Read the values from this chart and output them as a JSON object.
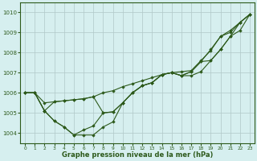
{
  "background_color": "#d6efef",
  "grid_color": "#b0c8c8",
  "line_color": "#2d5a1b",
  "marker_color": "#2d5a1b",
  "xlabel": "Graphe pression niveau de la mer (hPa)",
  "xlabel_color": "#2d5a1b",
  "ylim": [
    1003.5,
    1010.5
  ],
  "xlim": [
    -0.5,
    23.5
  ],
  "yticks": [
    1004,
    1005,
    1006,
    1007,
    1008,
    1009,
    1010
  ],
  "xticks": [
    0,
    1,
    2,
    3,
    4,
    5,
    6,
    7,
    8,
    9,
    10,
    11,
    12,
    13,
    14,
    15,
    16,
    17,
    18,
    19,
    20,
    21,
    22,
    23
  ],
  "series": [
    [
      1006.0,
      1006.0,
      1005.5,
      1005.55,
      1005.6,
      1005.65,
      1005.7,
      1005.8,
      1006.0,
      1006.1,
      1006.3,
      1006.45,
      1006.6,
      1006.75,
      1006.9,
      1007.0,
      1007.05,
      1007.1,
      1007.6,
      1008.1,
      1008.8,
      1009.0,
      1009.5,
      1009.9
    ],
    [
      1006.0,
      1006.0,
      1005.1,
      1004.6,
      1004.3,
      1003.9,
      1003.9,
      1003.9,
      1004.3,
      1004.55,
      1005.5,
      1006.0,
      1006.35,
      1006.5,
      1006.9,
      1007.0,
      1006.85,
      1007.05,
      1007.55,
      1008.15,
      1008.8,
      1009.1,
      1009.5,
      1009.9
    ],
    [
      1006.0,
      1006.0,
      1005.1,
      1005.55,
      1005.6,
      1005.65,
      1005.7,
      1005.8,
      1005.0,
      1005.05,
      1005.5,
      1006.0,
      1006.35,
      1006.5,
      1006.9,
      1007.0,
      1006.85,
      1007.05,
      1007.55,
      1007.6,
      1008.15,
      1008.8,
      1009.5,
      1009.9
    ],
    [
      1006.0,
      1006.0,
      1005.1,
      1004.6,
      1004.3,
      1003.9,
      1004.15,
      1004.35,
      1005.0,
      1005.05,
      1005.5,
      1006.0,
      1006.35,
      1006.5,
      1006.9,
      1007.0,
      1006.85,
      1006.85,
      1007.05,
      1007.6,
      1008.15,
      1008.8,
      1009.1,
      1009.9
    ]
  ]
}
